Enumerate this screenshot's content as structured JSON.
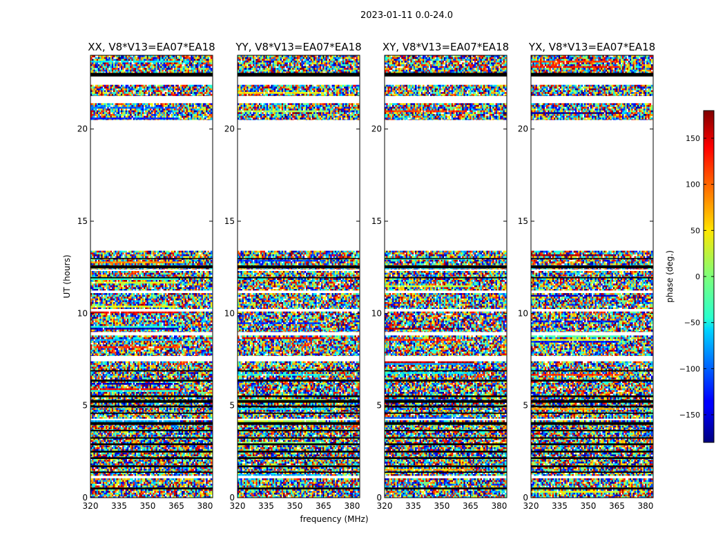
{
  "figure_title": "2023-01-11 0.0-24.0",
  "chart_data": {
    "type": "heatmap",
    "title": "2023-01-11 0.0-24.0",
    "xlabel": "frequency (MHz)",
    "ylabel": "UT (hours)",
    "xlim": [
      320,
      384
    ],
    "ylim": [
      0,
      24
    ],
    "x_ticks": [
      320,
      335,
      350,
      365,
      380
    ],
    "y_ticks": [
      0,
      5,
      10,
      15,
      20
    ],
    "panels": [
      {
        "title": "XX, V8*V13=EA07*EA18"
      },
      {
        "title": "YY, V8*V13=EA07*EA18"
      },
      {
        "title": "XY, V8*V13=EA07*EA18"
      },
      {
        "title": "YX, V8*V13=EA07*EA18"
      }
    ],
    "colorbar": {
      "label": "phase (deg.)",
      "colormap": "jet",
      "range": [
        -180,
        180
      ],
      "ticks": [
        -150,
        -100,
        -50,
        0,
        50,
        100,
        150
      ]
    },
    "observed_time_ranges": [
      [
        0.0,
        1.05
      ],
      [
        1.2,
        4.2
      ],
      [
        4.3,
        7.4
      ],
      [
        7.7,
        8.8
      ],
      [
        9.0,
        10.1
      ],
      [
        10.25,
        11.1
      ],
      [
        11.25,
        12.3
      ],
      [
        12.4,
        13.4
      ],
      [
        20.5,
        21.4
      ],
      [
        21.8,
        22.4
      ],
      [
        22.9,
        24.0
      ]
    ],
    "black_rows": [
      [
        0.45,
        0.55
      ],
      [
        1.35,
        1.42
      ],
      [
        1.65,
        1.75
      ],
      [
        2.1,
        2.2
      ],
      [
        2.45,
        2.55
      ],
      [
        2.85,
        2.95
      ],
      [
        3.2,
        3.28
      ],
      [
        3.6,
        3.68
      ],
      [
        3.95,
        4.1
      ],
      [
        4.55,
        4.62
      ],
      [
        4.9,
        5.0
      ],
      [
        5.15,
        5.3
      ],
      [
        5.45,
        5.55
      ],
      [
        6.3,
        6.4
      ],
      [
        6.85,
        6.92
      ],
      [
        11.9,
        11.97
      ],
      [
        12.45,
        12.6
      ],
      [
        12.95,
        13.0
      ],
      [
        22.85,
        23.05
      ]
    ]
  }
}
